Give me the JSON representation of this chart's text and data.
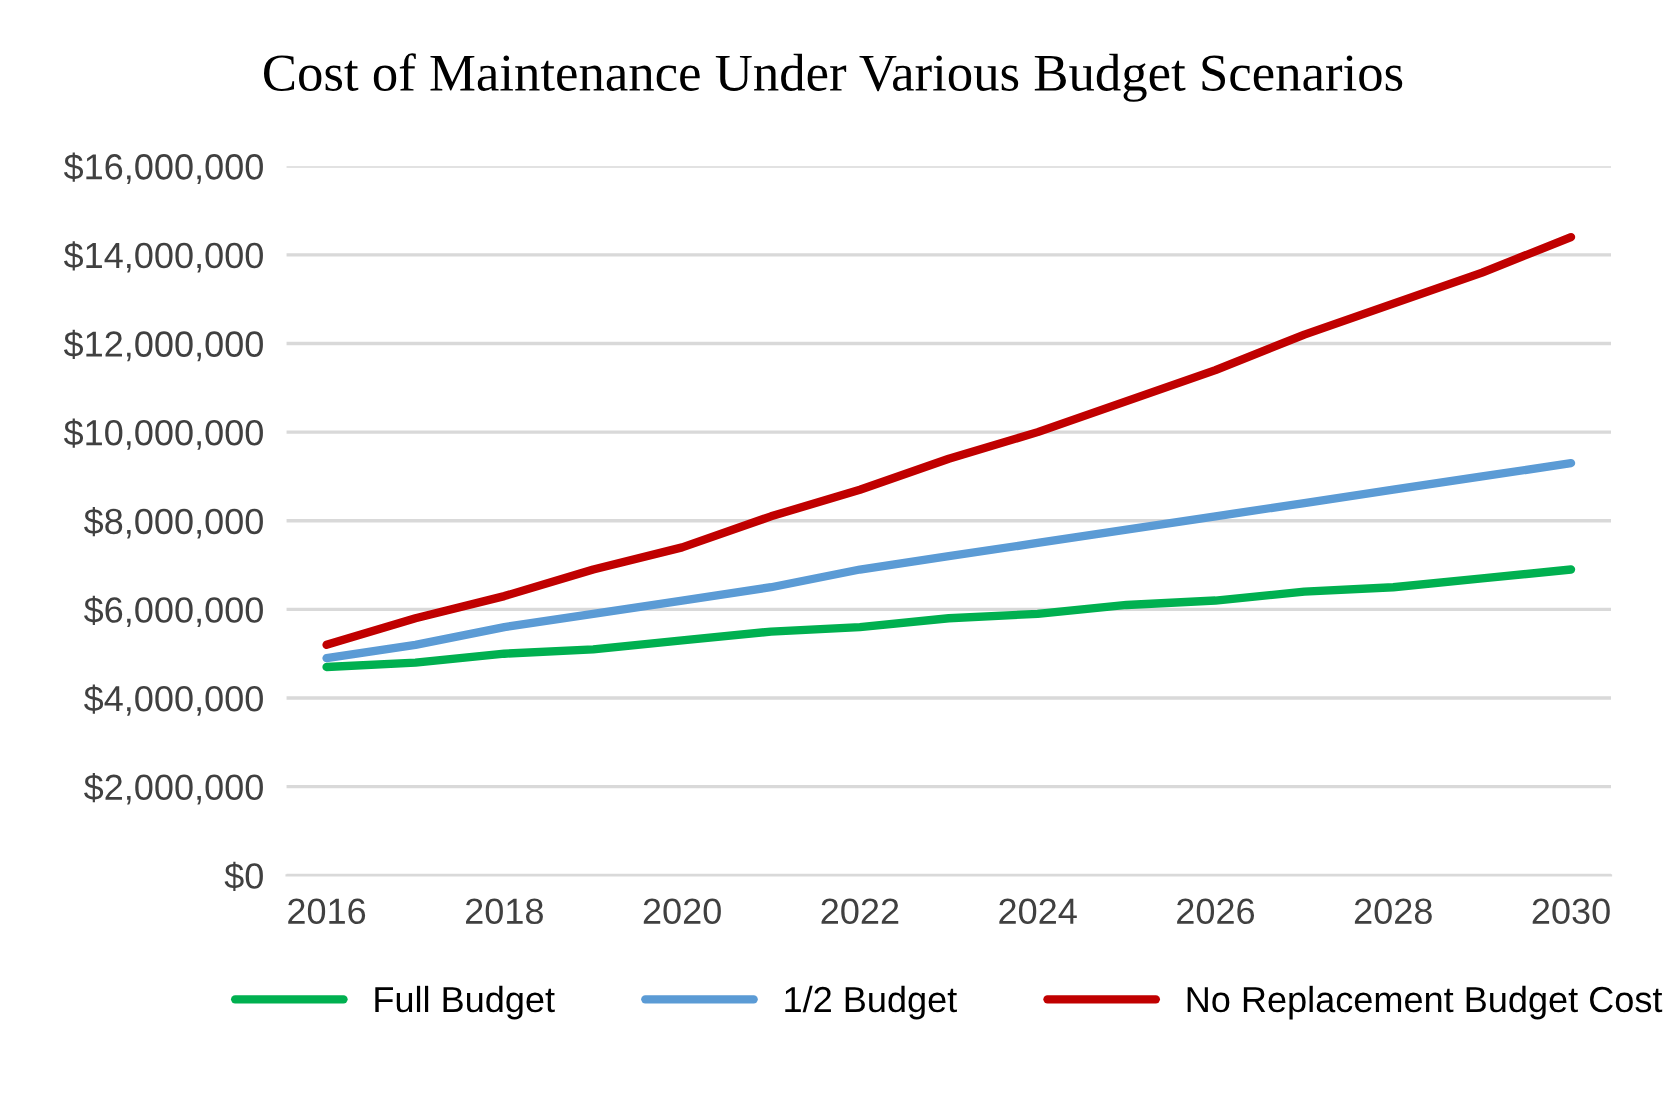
{
  "chart_data": {
    "type": "line",
    "title": "Cost of Maintenance Under Various Budget Scenarios",
    "x": [
      2016,
      2017,
      2018,
      2019,
      2020,
      2021,
      2022,
      2023,
      2024,
      2025,
      2026,
      2027,
      2028,
      2029,
      2030
    ],
    "series": [
      {
        "name": "Full Budget",
        "color": "#00b050",
        "values": [
          4700000,
          4800000,
          5000000,
          5100000,
          5300000,
          5500000,
          5600000,
          5800000,
          5900000,
          6100000,
          6200000,
          6400000,
          6500000,
          6700000,
          6900000
        ]
      },
      {
        "name": "1/2 Budget",
        "color": "#5b9bd5",
        "values": [
          4900000,
          5200000,
          5600000,
          5900000,
          6200000,
          6500000,
          6900000,
          7200000,
          7500000,
          7800000,
          8100000,
          8400000,
          8700000,
          9000000,
          9300000
        ]
      },
      {
        "name": "No Replacement Budget Cost",
        "color": "#c00000",
        "values": [
          5200000,
          5800000,
          6300000,
          6900000,
          7400000,
          8100000,
          8700000,
          9400000,
          10000000,
          10700000,
          11400000,
          12200000,
          12900000,
          13600000,
          14400000
        ]
      }
    ],
    "xlim": [
      2015.55,
      2030.45
    ],
    "xticks": [
      2016,
      2018,
      2020,
      2022,
      2024,
      2026,
      2028,
      2030
    ],
    "ylim": [
      0,
      16000000
    ],
    "yticks": [
      {
        "value": 0,
        "label": "$0"
      },
      {
        "value": 2000000,
        "label": "$2,000,000"
      },
      {
        "value": 4000000,
        "label": "$4,000,000"
      },
      {
        "value": 6000000,
        "label": "$6,000,000"
      },
      {
        "value": 8000000,
        "label": "$8,000,000"
      },
      {
        "value": 10000000,
        "label": "$10,000,000"
      },
      {
        "value": 12000000,
        "label": "$12,000,000"
      },
      {
        "value": 14000000,
        "label": "$14,000,000"
      },
      {
        "value": 16000000,
        "label": "$16,000,000"
      }
    ],
    "grid": "y",
    "legend": "bottom",
    "marker": "none",
    "line_style": "solid"
  }
}
